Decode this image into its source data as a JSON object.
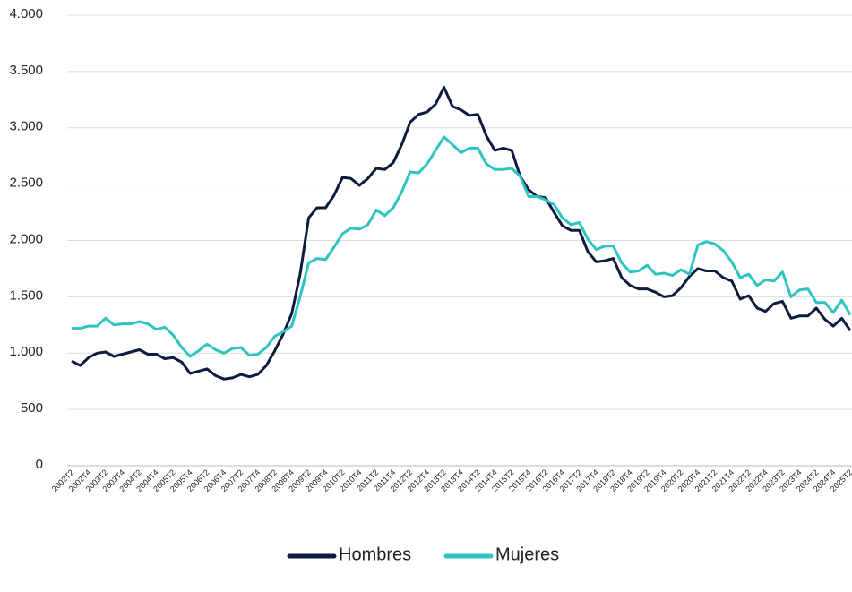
{
  "chart_data": {
    "type": "line",
    "categories": [
      "2002T2",
      null,
      "2002T4",
      null,
      "2003T2",
      null,
      "2003T4",
      null,
      "2004T2",
      null,
      "2004T4",
      null,
      "2005T2",
      null,
      "2005T4",
      null,
      "2006T2",
      null,
      "2006T4",
      null,
      "2007T2",
      null,
      "2007T4",
      null,
      "2008T2",
      null,
      "2008T4",
      null,
      "2009T2",
      null,
      "2009T4",
      null,
      "2010T2",
      null,
      "2010T4",
      null,
      "2011T2",
      null,
      "2011T4",
      null,
      "2012T2",
      null,
      "2012T4",
      null,
      "2013T2",
      null,
      "2013T4",
      null,
      "2014T2",
      null,
      "2014T4",
      null,
      "2015T2",
      null,
      "2015T4",
      null,
      "2016T2",
      null,
      "2016T4",
      null,
      "2017T2",
      null,
      "2017T4",
      null,
      "2018T2",
      null,
      "2018T4",
      null,
      "2019T2",
      null,
      "2019T4",
      null,
      "2020T2",
      null,
      "2020T4",
      null,
      "2021T2",
      null,
      "2021T4",
      null,
      "2022T2",
      null,
      "2022T4",
      null,
      "2023T2",
      null,
      "2023T4",
      null,
      "2024T2",
      null,
      "2024T4",
      null,
      "2025T2"
    ],
    "series": [
      {
        "name": "Hombres",
        "color": "#0d1b3e",
        "values": [
          930,
          890,
          960,
          1000,
          1010,
          970,
          990,
          1010,
          1030,
          990,
          990,
          950,
          960,
          920,
          820,
          840,
          860,
          800,
          770,
          780,
          810,
          790,
          810,
          890,
          1020,
          1170,
          1350,
          1700,
          2200,
          2290,
          2290,
          2400,
          2560,
          2550,
          2490,
          2550,
          2640,
          2630,
          2690,
          2850,
          3050,
          3120,
          3140,
          3210,
          3360,
          3190,
          3160,
          3110,
          3120,
          2930,
          2800,
          2820,
          2800,
          2570,
          2450,
          2390,
          2380,
          2250,
          2130,
          2090,
          2090,
          1900,
          1810,
          1820,
          1840,
          1670,
          1600,
          1570,
          1570,
          1540,
          1500,
          1510,
          1580,
          1680,
          1750,
          1730,
          1730,
          1670,
          1640,
          1480,
          1510,
          1400,
          1370,
          1440,
          1460,
          1310,
          1330,
          1330,
          1400,
          1300,
          1240,
          1310,
          1200
        ]
      },
      {
        "name": "Mujeres",
        "color": "#2ec4c0",
        "values": [
          1220,
          1220,
          1240,
          1240,
          1310,
          1250,
          1260,
          1260,
          1280,
          1260,
          1210,
          1230,
          1160,
          1050,
          970,
          1020,
          1080,
          1030,
          1000,
          1040,
          1050,
          980,
          990,
          1050,
          1150,
          1190,
          1240,
          1500,
          1800,
          1840,
          1830,
          1940,
          2060,
          2110,
          2100,
          2140,
          2270,
          2220,
          2290,
          2430,
          2610,
          2600,
          2680,
          2800,
          2920,
          2850,
          2780,
          2820,
          2820,
          2680,
          2630,
          2630,
          2640,
          2570,
          2390,
          2390,
          2360,
          2320,
          2200,
          2140,
          2160,
          2010,
          1920,
          1950,
          1950,
          1800,
          1720,
          1730,
          1780,
          1700,
          1710,
          1690,
          1740,
          1700,
          1960,
          1990,
          1970,
          1910,
          1810,
          1670,
          1700,
          1600,
          1650,
          1640,
          1720,
          1500,
          1560,
          1570,
          1450,
          1450,
          1360,
          1470,
          1340
        ]
      }
    ],
    "ylim": [
      0,
      4000
    ],
    "yticks": [
      0,
      500,
      {
        "value": 1000,
        "label": "1.000"
      },
      {
        "value": 1500,
        "label": "1.500"
      },
      {
        "value": 2000,
        "label": "2.000"
      },
      {
        "value": 2500,
        "label": "2.500"
      },
      {
        "value": 3000,
        "label": "3.000"
      },
      {
        "value": 3500,
        "label": "3.500"
      },
      {
        "value": 4000,
        "label": "4.000"
      }
    ],
    "grid": true
  }
}
